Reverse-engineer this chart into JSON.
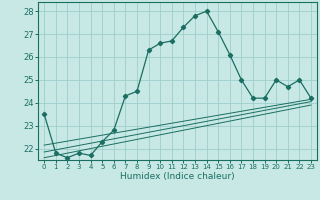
{
  "xlabel": "Humidex (Indice chaleur)",
  "ylabel": "",
  "xlim": [
    -0.5,
    23.5
  ],
  "ylim": [
    21.5,
    28.4
  ],
  "yticks": [
    22,
    23,
    24,
    25,
    26,
    27,
    28
  ],
  "xticks": [
    0,
    1,
    2,
    3,
    4,
    5,
    6,
    7,
    8,
    9,
    10,
    11,
    12,
    13,
    14,
    15,
    16,
    17,
    18,
    19,
    20,
    21,
    22,
    23
  ],
  "bg_color": "#c8e8e5",
  "grid_color": "#9ecece",
  "line_color": "#1a6e62",
  "main_curve_x": [
    0,
    1,
    2,
    3,
    4,
    5,
    6,
    7,
    8,
    9,
    10,
    11,
    12,
    13,
    14,
    15,
    16,
    17,
    18,
    19,
    20,
    21,
    22,
    23
  ],
  "main_curve_y": [
    23.5,
    21.8,
    21.6,
    21.8,
    21.7,
    22.3,
    22.8,
    24.3,
    24.5,
    26.3,
    26.6,
    26.7,
    27.3,
    27.8,
    28.0,
    27.1,
    26.1,
    25.0,
    24.2,
    24.2,
    25.0,
    24.7,
    25.0,
    24.2
  ],
  "reg_line1_x": [
    0,
    23
  ],
  "reg_line1_y": [
    22.15,
    24.15
  ],
  "reg_line2_x": [
    0,
    23
  ],
  "reg_line2_y": [
    21.85,
    24.05
  ],
  "reg_line3_x": [
    0,
    23
  ],
  "reg_line3_y": [
    21.6,
    23.9
  ]
}
